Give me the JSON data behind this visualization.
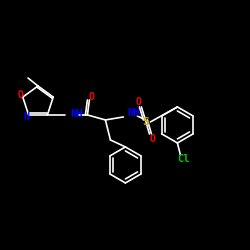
{
  "bg": "#000000",
  "bond_color": "#ffffff",
  "atom_colors": {
    "O": "#ff0000",
    "N": "#0000ff",
    "S": "#ccaa00",
    "Cl": "#00cc00",
    "C": "#ffffff"
  },
  "font_size": 7,
  "bond_width": 1.2
}
